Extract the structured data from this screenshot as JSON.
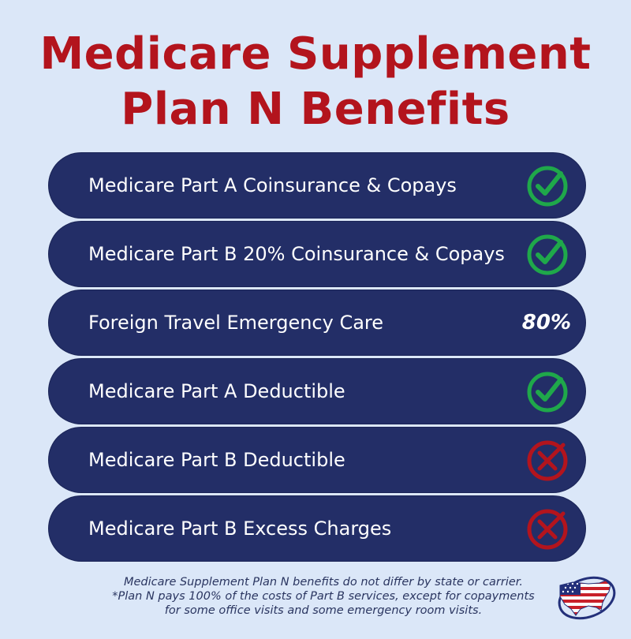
{
  "title": {
    "line1": "Medicare Supplement",
    "line2": "Plan N Benefits"
  },
  "colors": {
    "background": "#dbe7f8",
    "title": "#b3141d",
    "row": "#232e67",
    "check": "#1fa84a",
    "cross": "#b3141d"
  },
  "benefits": [
    {
      "label": "Medicare Part A Coinsurance & Copays",
      "status": "covered",
      "icon": "green-check-circle-icon"
    },
    {
      "label": "Medicare Part B 20% Coinsurance & Copays",
      "status": "covered",
      "icon": "green-check-circle-icon"
    },
    {
      "label": "Foreign Travel Emergency Care",
      "status": "partial",
      "value": "80%"
    },
    {
      "label": "Medicare Part A Deductible",
      "status": "covered",
      "icon": "green-check-circle-icon"
    },
    {
      "label": "Medicare Part B Deductible",
      "status": "not-covered",
      "icon": "red-x-circle-icon"
    },
    {
      "label": "Medicare Part B Excess Charges",
      "status": "not-covered",
      "icon": "red-x-circle-icon"
    }
  ],
  "footnote": {
    "line1": "Medicare Supplement Plan N benefits do not differ by state or carrier.",
    "line2": "*Plan N pays 100% of the costs of Part B services, except for copayments",
    "line3": "for some office visits and some emergency room visits."
  },
  "logo_icon": "us-flag-map-logo-icon"
}
